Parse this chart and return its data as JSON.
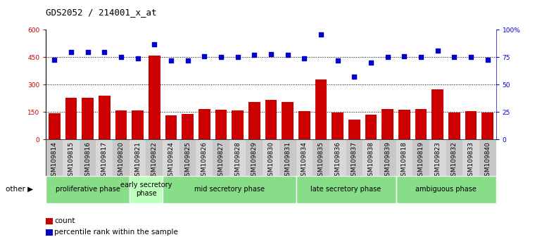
{
  "title": "GDS2052 / 214001_x_at",
  "samples": [
    "GSM109814",
    "GSM109815",
    "GSM109816",
    "GSM109817",
    "GSM109820",
    "GSM109821",
    "GSM109822",
    "GSM109824",
    "GSM109825",
    "GSM109826",
    "GSM109827",
    "GSM109828",
    "GSM109829",
    "GSM109830",
    "GSM109831",
    "GSM109834",
    "GSM109835",
    "GSM109836",
    "GSM109837",
    "GSM109838",
    "GSM109839",
    "GSM109818",
    "GSM109819",
    "GSM109823",
    "GSM109832",
    "GSM109833",
    "GSM109840"
  ],
  "counts": [
    145,
    230,
    228,
    240,
    158,
    160,
    460,
    130,
    140,
    165,
    162,
    158,
    205,
    215,
    205,
    155,
    330,
    148,
    108,
    135,
    165,
    162,
    165,
    275,
    148,
    155,
    148
  ],
  "percentiles": [
    73,
    80,
    80,
    80,
    75,
    74,
    87,
    72,
    72,
    76,
    75,
    75,
    77,
    78,
    77,
    74,
    96,
    72,
    57,
    70,
    75,
    76,
    75,
    81,
    75,
    75,
    73
  ],
  "bar_color": "#cc0000",
  "dot_color": "#0000cc",
  "ylim_left": [
    0,
    600
  ],
  "yticks_left": [
    0,
    150,
    300,
    450,
    600
  ],
  "ytick_labels_left": [
    "0",
    "150",
    "300",
    "450",
    "600"
  ],
  "yticks_right_pct": [
    0,
    25,
    50,
    75,
    100
  ],
  "ytick_labels_right": [
    "0",
    "25",
    "50",
    "75",
    "100%"
  ],
  "grid_lines": [
    150,
    300,
    450
  ],
  "phases": [
    {
      "label": "proliferative phase",
      "start": 0,
      "end": 5,
      "color": "#88dd88"
    },
    {
      "label": "early secretory\nphase",
      "start": 5,
      "end": 7,
      "color": "#bbffbb"
    },
    {
      "label": "mid secretory phase",
      "start": 7,
      "end": 15,
      "color": "#88dd88"
    },
    {
      "label": "late secretory phase",
      "start": 15,
      "end": 21,
      "color": "#88dd88"
    },
    {
      "label": "ambiguous phase",
      "start": 21,
      "end": 27,
      "color": "#88dd88"
    }
  ],
  "other_label": "other",
  "legend_count_label": "count",
  "legend_pct_label": "percentile rank within the sample",
  "title_fontsize": 9,
  "tick_fontsize": 6.5,
  "phase_fontsize": 7,
  "legend_fontsize": 7.5
}
